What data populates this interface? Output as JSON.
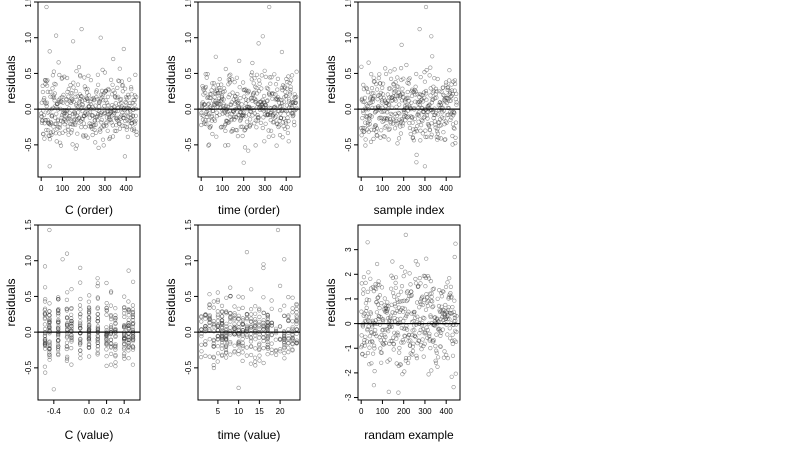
{
  "chart_data": [
    {
      "type": "scatter",
      "xlabel": "C (order)",
      "ylabel": "residuals",
      "xlim": [
        -15,
        465
      ],
      "ylim": [
        -0.95,
        1.5
      ],
      "xticks": [
        0,
        100,
        200,
        300,
        400
      ],
      "xtick_labels": [
        "0",
        "100",
        "200",
        "300",
        "400"
      ],
      "yticks": [
        -0.5,
        0.0,
        0.5,
        1.0,
        1.5
      ],
      "ytick_labels": [
        "-0.5",
        "0.0",
        "0.5",
        "1.0",
        "1.5"
      ],
      "hline": 0,
      "grid": false,
      "n": 450,
      "pattern": "order",
      "seed": 11,
      "spread": 0.22,
      "outliers": [
        [
          25,
          1.43
        ],
        [
          70,
          1.03
        ],
        [
          190,
          1.12
        ],
        [
          150,
          0.95
        ],
        [
          280,
          1.0
        ],
        [
          40,
          -0.8
        ]
      ]
    },
    {
      "type": "scatter",
      "xlabel": "time (order)",
      "ylabel": "residuals",
      "xlim": [
        -15,
        465
      ],
      "ylim": [
        -0.95,
        1.5
      ],
      "xticks": [
        0,
        100,
        200,
        300,
        400
      ],
      "xtick_labels": [
        "0",
        "100",
        "200",
        "300",
        "400"
      ],
      "yticks": [
        -0.5,
        0.0,
        0.5,
        1.0,
        1.5
      ],
      "ytick_labels": [
        "-0.5",
        "0.0",
        "0.5",
        "1.0",
        "1.5"
      ],
      "hline": 0,
      "grid": false,
      "n": 450,
      "pattern": "order",
      "seed": 23,
      "spread": 0.2,
      "outliers": [
        [
          320,
          1.43
        ],
        [
          270,
          0.92
        ],
        [
          290,
          1.02
        ],
        [
          380,
          0.8
        ],
        [
          200,
          -0.75
        ]
      ]
    },
    {
      "type": "scatter",
      "xlabel": "sample index",
      "ylabel": "residuals",
      "xlim": [
        -15,
        465
      ],
      "ylim": [
        -0.95,
        1.5
      ],
      "xticks": [
        0,
        100,
        200,
        300,
        400
      ],
      "xtick_labels": [
        "0",
        "100",
        "200",
        "300",
        "400"
      ],
      "yticks": [
        -0.5,
        0.0,
        0.5,
        1.0,
        1.5
      ],
      "ytick_labels": [
        "-0.5",
        "0.0",
        "0.5",
        "1.0",
        "1.5"
      ],
      "hline": 0,
      "grid": false,
      "n": 450,
      "pattern": "order",
      "seed": 37,
      "spread": 0.24,
      "outliers": [
        [
          305,
          1.43
        ],
        [
          275,
          1.12
        ],
        [
          330,
          1.02
        ],
        [
          190,
          0.9
        ],
        [
          300,
          -0.8
        ]
      ]
    },
    {
      "type": "scatter",
      "xlabel": "C (value)",
      "ylabel": "residuals",
      "xlim": [
        -0.58,
        0.58
      ],
      "ylim": [
        -0.95,
        1.5
      ],
      "xticks": [
        -0.4,
        0.0,
        0.2,
        0.4
      ],
      "xtick_labels": [
        "-0.4",
        "0.0",
        "0.2",
        "0.4"
      ],
      "yticks": [
        -0.5,
        0.0,
        0.5,
        1.0,
        1.5
      ],
      "ytick_labels": [
        "-0.5",
        "0.0",
        "0.5",
        "1.0",
        "1.5"
      ],
      "hline": 0,
      "grid": false,
      "n": 420,
      "pattern": "columns",
      "columns": [
        -0.5,
        -0.45,
        -0.35,
        -0.25,
        -0.2,
        -0.1,
        0.0,
        0.1,
        0.2,
        0.25,
        0.3,
        0.4,
        0.45,
        0.5
      ],
      "seed": 41,
      "spread": 0.2,
      "outliers": [
        [
          -0.45,
          1.43
        ],
        [
          -0.25,
          1.1
        ],
        [
          -0.3,
          1.02
        ],
        [
          -0.5,
          0.92
        ],
        [
          -0.1,
          0.9
        ],
        [
          -0.4,
          -0.8
        ]
      ]
    },
    {
      "type": "scatter",
      "xlabel": "time (value)",
      "ylabel": "residuals",
      "xlim": [
        0.2,
        24.8
      ],
      "ylim": [
        -0.95,
        1.5
      ],
      "xticks": [
        5,
        10,
        15,
        20
      ],
      "xtick_labels": [
        "5",
        "10",
        "15",
        "20"
      ],
      "yticks": [
        -0.5,
        0.0,
        0.5,
        1.0,
        1.5
      ],
      "ytick_labels": [
        "-0.5",
        "0.0",
        "0.5",
        "1.0",
        "1.5"
      ],
      "hline": 0,
      "grid": false,
      "n": 420,
      "pattern": "columns",
      "columns": [
        1,
        2,
        3,
        4,
        5,
        6,
        7,
        8,
        9,
        10,
        11,
        12,
        13,
        14,
        15,
        16,
        17,
        18,
        19,
        20,
        21,
        22,
        23,
        24
      ],
      "seed": 53,
      "spread": 0.2,
      "outliers": [
        [
          19.5,
          1.43
        ],
        [
          12,
          1.12
        ],
        [
          21,
          1.02
        ],
        [
          16,
          0.95
        ],
        [
          10,
          -0.78
        ]
      ]
    },
    {
      "type": "scatter",
      "xlabel": "randam example",
      "ylabel": "residuals",
      "xlim": [
        -15,
        465
      ],
      "ylim": [
        -3.1,
        4.0
      ],
      "xticks": [
        0,
        100,
        200,
        300,
        400
      ],
      "xtick_labels": [
        "0",
        "100",
        "200",
        "300",
        "400"
      ],
      "yticks": [
        -3,
        -2,
        -1,
        0,
        1,
        2,
        3
      ],
      "ytick_labels": [
        "-3",
        "-2",
        "-1",
        "0",
        "1",
        "2",
        "3"
      ],
      "hline": 0,
      "grid": false,
      "n": 450,
      "pattern": "uniform",
      "seed": 67,
      "spread": 0.95,
      "outliers": [
        [
          30,
          3.3
        ],
        [
          210,
          3.6
        ],
        [
          440,
          2.7
        ],
        [
          175,
          -2.8
        ],
        [
          60,
          -2.5
        ]
      ]
    }
  ]
}
